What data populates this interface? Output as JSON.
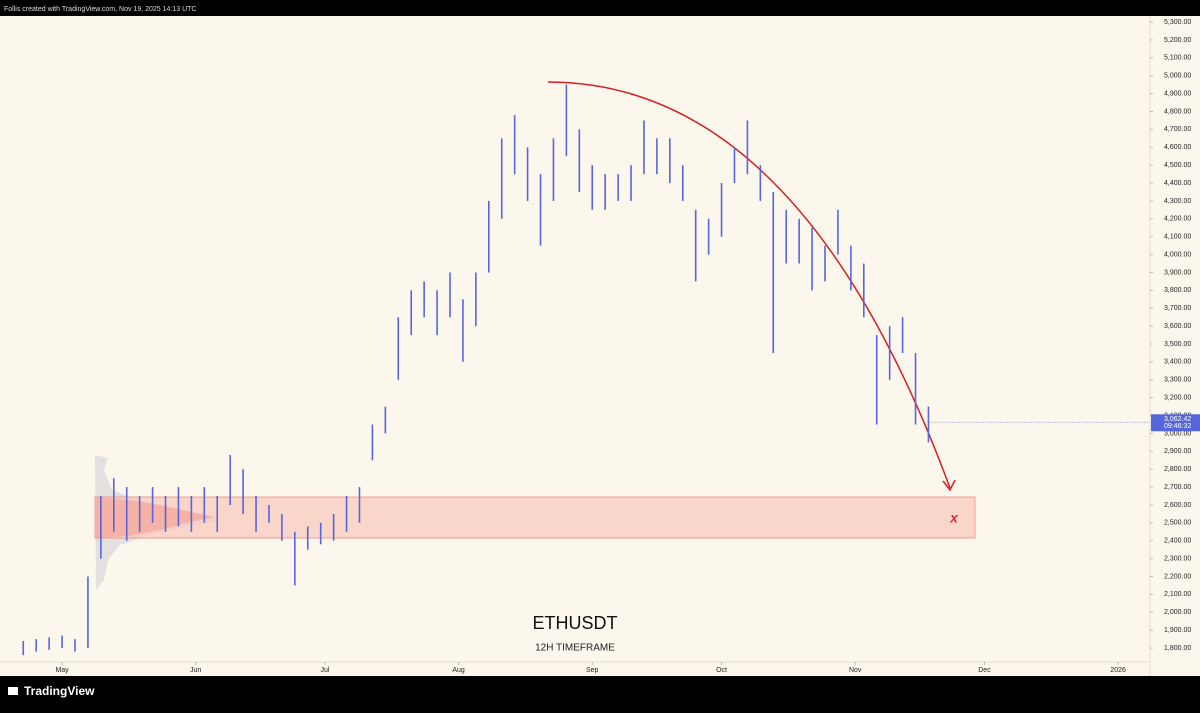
{
  "header": "Follis created with TradingView.com, Nov 19, 2025 14:13 UTC",
  "footer": "TradingView",
  "chart_data": {
    "type": "range-bar",
    "title": "ETHUSDT",
    "subtitle": "12H TIMEFRAME",
    "zone_label": "x",
    "color": "#5566dd",
    "x": [
      112,
      115,
      118,
      121,
      124,
      127,
      130,
      133,
      136,
      139,
      142,
      145,
      148,
      151,
      154,
      157,
      160,
      163,
      166,
      169,
      172,
      175,
      178,
      181,
      184,
      187,
      190,
      193,
      196,
      199,
      202,
      205,
      208,
      211,
      214,
      217,
      220,
      223,
      226,
      229,
      232,
      235,
      238,
      241,
      244,
      247,
      250,
      253,
      256,
      259,
      262,
      265,
      268,
      271,
      274,
      277,
      280,
      283,
      286,
      289,
      292,
      295,
      298,
      301,
      304,
      307,
      310,
      313,
      316,
      319,
      322
    ],
    "low": [
      1760,
      1780,
      1790,
      1800,
      1780,
      1800,
      2300,
      2450,
      2400,
      2450,
      2500,
      2450,
      2480,
      2450,
      2500,
      2450,
      2600,
      2550,
      2450,
      2500,
      2400,
      2150,
      2350,
      2380,
      2400,
      2450,
      2500,
      2850,
      3000,
      3300,
      3550,
      3650,
      3550,
      3650,
      3400,
      3600,
      3900,
      4200,
      4450,
      4300,
      4050,
      4300,
      4550,
      4350,
      4250,
      4250,
      4300,
      4300,
      4450,
      4450,
      4400,
      4300,
      3850,
      4000,
      4100,
      4400,
      4450,
      4300,
      3450,
      3950,
      3950,
      3800,
      3850,
      4000,
      3800,
      3650,
      3050,
      3300,
      3450,
      3050,
      2950
    ],
    "high": [
      1840,
      1850,
      1860,
      1870,
      1850,
      2200,
      2650,
      2750,
      2700,
      2650,
      2700,
      2650,
      2700,
      2650,
      2700,
      2650,
      2880,
      2800,
      2650,
      2600,
      2550,
      2450,
      2480,
      2500,
      2550,
      2650,
      2700,
      3050,
      3150,
      3650,
      3800,
      3850,
      3800,
      3900,
      3750,
      3900,
      4300,
      4650,
      4780,
      4600,
      4450,
      4650,
      4950,
      4700,
      4500,
      4450,
      4450,
      4500,
      4750,
      4650,
      4650,
      4500,
      4250,
      4200,
      4400,
      4600,
      4750,
      4500,
      4350,
      4250,
      4200,
      4150,
      4050,
      4250,
      4050,
      3950,
      3550,
      3600,
      3650,
      3450,
      3150
    ],
    "last_price": {
      "value": 3062.42,
      "label": "3,062.42"
    },
    "countdown": "09:46:32",
    "xlim": [
      106.6,
      373.4
    ],
    "xticks": [
      {
        "value": 121,
        "label": "May"
      },
      {
        "value": 152,
        "label": "Jun"
      },
      {
        "value": 182,
        "label": "Jul"
      },
      {
        "value": 213,
        "label": "Aug"
      },
      {
        "value": 244,
        "label": "Sep"
      },
      {
        "value": 274,
        "label": "Oct"
      },
      {
        "value": 305,
        "label": "Nov"
      },
      {
        "value": 335,
        "label": "Dec"
      },
      {
        "value": 366,
        "label": "2026"
      }
    ],
    "ylim": [
      1722,
      5334
    ],
    "yticks": [
      {
        "value": 1800,
        "label": "1,800.00"
      },
      {
        "value": 1900,
        "label": "1,900.00"
      },
      {
        "value": 2000,
        "label": "2,000.00"
      },
      {
        "value": 2100,
        "label": "2,100.00"
      },
      {
        "value": 2200,
        "label": "2,200.00"
      },
      {
        "value": 2300,
        "label": "2,300.00"
      },
      {
        "value": 2400,
        "label": "2,400.00"
      },
      {
        "value": 2500,
        "label": "2,500.00"
      },
      {
        "value": 2600,
        "label": "2,600.00"
      },
      {
        "value": 2700,
        "label": "2,700.00"
      },
      {
        "value": 2800,
        "label": "2,800.00"
      },
      {
        "value": 2900,
        "label": "2,900.00"
      },
      {
        "value": 3000,
        "label": "3,000.00"
      },
      {
        "value": 3100,
        "label": "3,100.00"
      },
      {
        "value": 3200,
        "label": "3,200.00"
      },
      {
        "value": 3300,
        "label": "3,300.00"
      },
      {
        "value": 3400,
        "label": "3,400.00"
      },
      {
        "value": 3500,
        "label": "3,500.00"
      },
      {
        "value": 3600,
        "label": "3,600.00"
      },
      {
        "value": 3700,
        "label": "3,700.00"
      },
      {
        "value": 3800,
        "label": "3,800.00"
      },
      {
        "value": 3900,
        "label": "3,900.00"
      },
      {
        "value": 4000,
        "label": "4,000.00"
      },
      {
        "value": 4100,
        "label": "4,100.00"
      },
      {
        "value": 4200,
        "label": "4,200.00"
      },
      {
        "value": 4300,
        "label": "4,300.00"
      },
      {
        "value": 4400,
        "label": "4,400.00"
      },
      {
        "value": 4500,
        "label": "4,500.00"
      },
      {
        "value": 4600,
        "label": "4,600.00"
      },
      {
        "value": 4700,
        "label": "4,700.00"
      },
      {
        "value": 4800,
        "label": "4,800.00"
      },
      {
        "value": 4900,
        "label": "4,900.00"
      },
      {
        "value": 5000,
        "label": "5,000.00"
      },
      {
        "value": 5100,
        "label": "5,100.00"
      },
      {
        "value": 5200,
        "label": "5,200.00"
      },
      {
        "value": 5300,
        "label": "5,300.00"
      }
    ]
  }
}
